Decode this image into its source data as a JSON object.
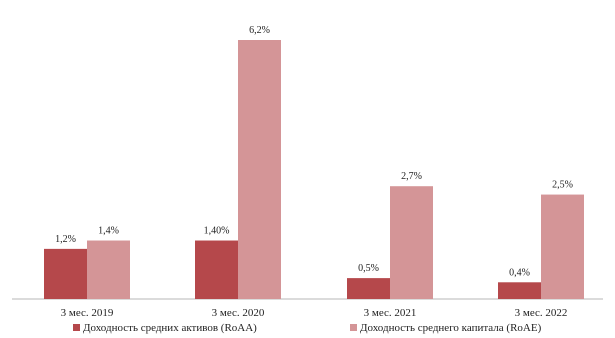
{
  "chart_data": {
    "type": "bar",
    "title": "",
    "xlabel": "",
    "ylabel": "",
    "categories": [
      "3 мес. 2019",
      "3 мес. 2020",
      "3 мес. 2021",
      "3 мес. 2022"
    ],
    "series": [
      {
        "name": "Доходность средних активов (RoAA)",
        "values": [
          1.2,
          1.4,
          0.5,
          0.4
        ],
        "labels": [
          "1,2%",
          "1,40%",
          "0,5%",
          "0,4%"
        ],
        "color": "#b5484b"
      },
      {
        "name": "Доходность среднего капитала (RoAE)",
        "values": [
          1.4,
          6.2,
          2.7,
          2.5
        ],
        "labels": [
          "1,4%",
          "6,2%",
          "2,7%",
          "2,5%"
        ],
        "color": "#d49597"
      }
    ],
    "ylim": [
      0,
      6.2
    ],
    "grid": false,
    "legend_position": "bottom"
  }
}
